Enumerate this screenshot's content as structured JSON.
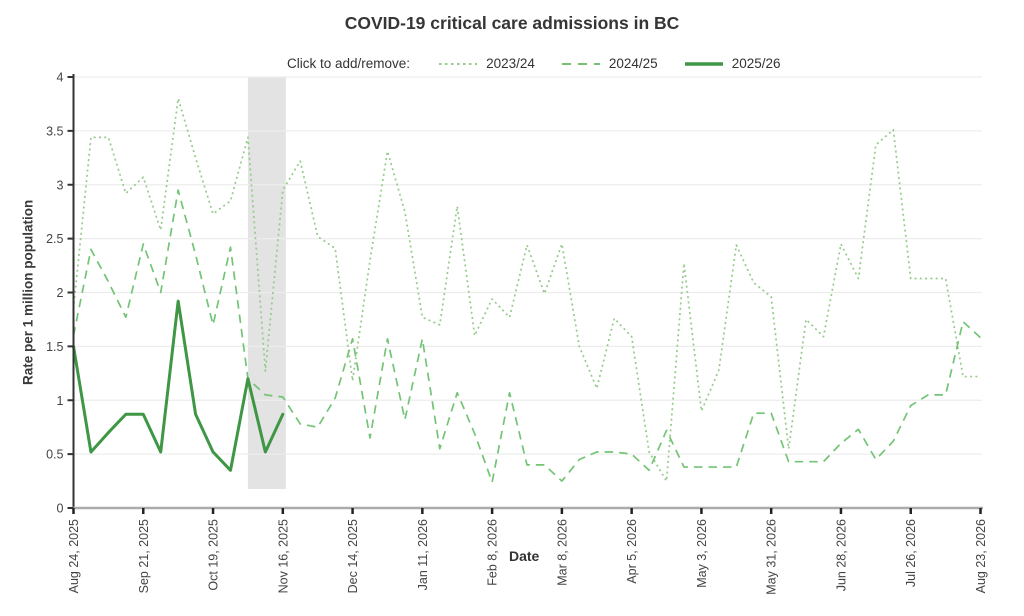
{
  "title": "COVID-19 critical care admissions in BC",
  "legend": {
    "prompt": "Click to add/remove:",
    "items": [
      "2023/24",
      "2024/25",
      "2025/26"
    ]
  },
  "chart_data": {
    "type": "line",
    "title": "COVID-19 critical care admissions in BC",
    "xlabel": "Date",
    "ylabel": "Rate per 1 million population",
    "ylim": [
      0,
      4
    ],
    "grid": "horizontal",
    "legend_position": "top",
    "y_ticks": [
      0,
      0.5,
      1,
      1.5,
      2,
      2.5,
      3,
      3.5,
      4
    ],
    "weeks": 53,
    "x_start_date": "Aug 24, 2025",
    "x_interval": "1 week per point",
    "x_ticks": [
      {
        "week": 0,
        "label": "Aug 24, 2025"
      },
      {
        "week": 4,
        "label": "Sep 21, 2025"
      },
      {
        "week": 8,
        "label": "Oct 19, 2025"
      },
      {
        "week": 12,
        "label": "Nov 16, 2025"
      },
      {
        "week": 16,
        "label": "Dec 14, 2025"
      },
      {
        "week": 20,
        "label": "Jan 11, 2026"
      },
      {
        "week": 24,
        "label": "Feb 8, 2026"
      },
      {
        "week": 28,
        "label": "Mar 8, 2026"
      },
      {
        "week": 32,
        "label": "Apr 5, 2026"
      },
      {
        "week": 36,
        "label": "May 3, 2026"
      },
      {
        "week": 40,
        "label": "May 31, 2026"
      },
      {
        "week": 44,
        "label": "Jun 28, 2026"
      },
      {
        "week": 48,
        "label": "Jul 26, 2026"
      },
      {
        "week": 52,
        "label": "Aug 23, 2026"
      }
    ],
    "recent_weeks_band": {
      "from_week": 10,
      "to_week": 12,
      "color": "#e3e3e3"
    },
    "series": [
      {
        "name": "2023/24",
        "style": "dotted",
        "color": "#95cb8b",
        "values": [
          1.85,
          3.44,
          3.44,
          2.92,
          3.07,
          2.58,
          3.8,
          3.25,
          2.73,
          2.85,
          3.44,
          1.27,
          2.95,
          3.22,
          2.52,
          2.41,
          1.18,
          2.3,
          3.31,
          2.75,
          1.77,
          1.7,
          2.8,
          1.6,
          1.94,
          1.77,
          2.44,
          1.99,
          2.45,
          1.5,
          1.11,
          1.76,
          1.59,
          0.52,
          0.25,
          2.27,
          0.9,
          1.28,
          2.44,
          2.09,
          1.96,
          0.55,
          1.75,
          1.59,
          2.45,
          2.13,
          3.37,
          3.51,
          2.13,
          2.13,
          2.13,
          1.22,
          1.22
        ]
      },
      {
        "name": "2024/25",
        "style": "dashed",
        "color": "#74c476",
        "values": [
          1.6,
          2.4,
          2.1,
          1.77,
          2.45,
          2.0,
          2.95,
          2.35,
          1.7,
          2.42,
          1.2,
          1.05,
          1.03,
          0.78,
          0.75,
          1.02,
          1.57,
          0.65,
          1.57,
          0.82,
          1.57,
          0.55,
          1.07,
          0.69,
          0.24,
          1.07,
          0.4,
          0.4,
          0.25,
          0.45,
          0.52,
          0.52,
          0.5,
          0.35,
          0.72,
          0.38,
          0.38,
          0.38,
          0.38,
          0.88,
          0.88,
          0.43,
          0.43,
          0.43,
          0.6,
          0.73,
          0.45,
          0.62,
          0.95,
          1.05,
          1.05,
          1.73,
          1.58
        ]
      },
      {
        "name": "2025/26",
        "style": "solid",
        "color": "#3f9644",
        "values": [
          1.5,
          0.52,
          0.7,
          0.87,
          0.87,
          0.52,
          1.92,
          0.87,
          0.52,
          0.35,
          1.2,
          0.52,
          0.87
        ]
      }
    ]
  }
}
